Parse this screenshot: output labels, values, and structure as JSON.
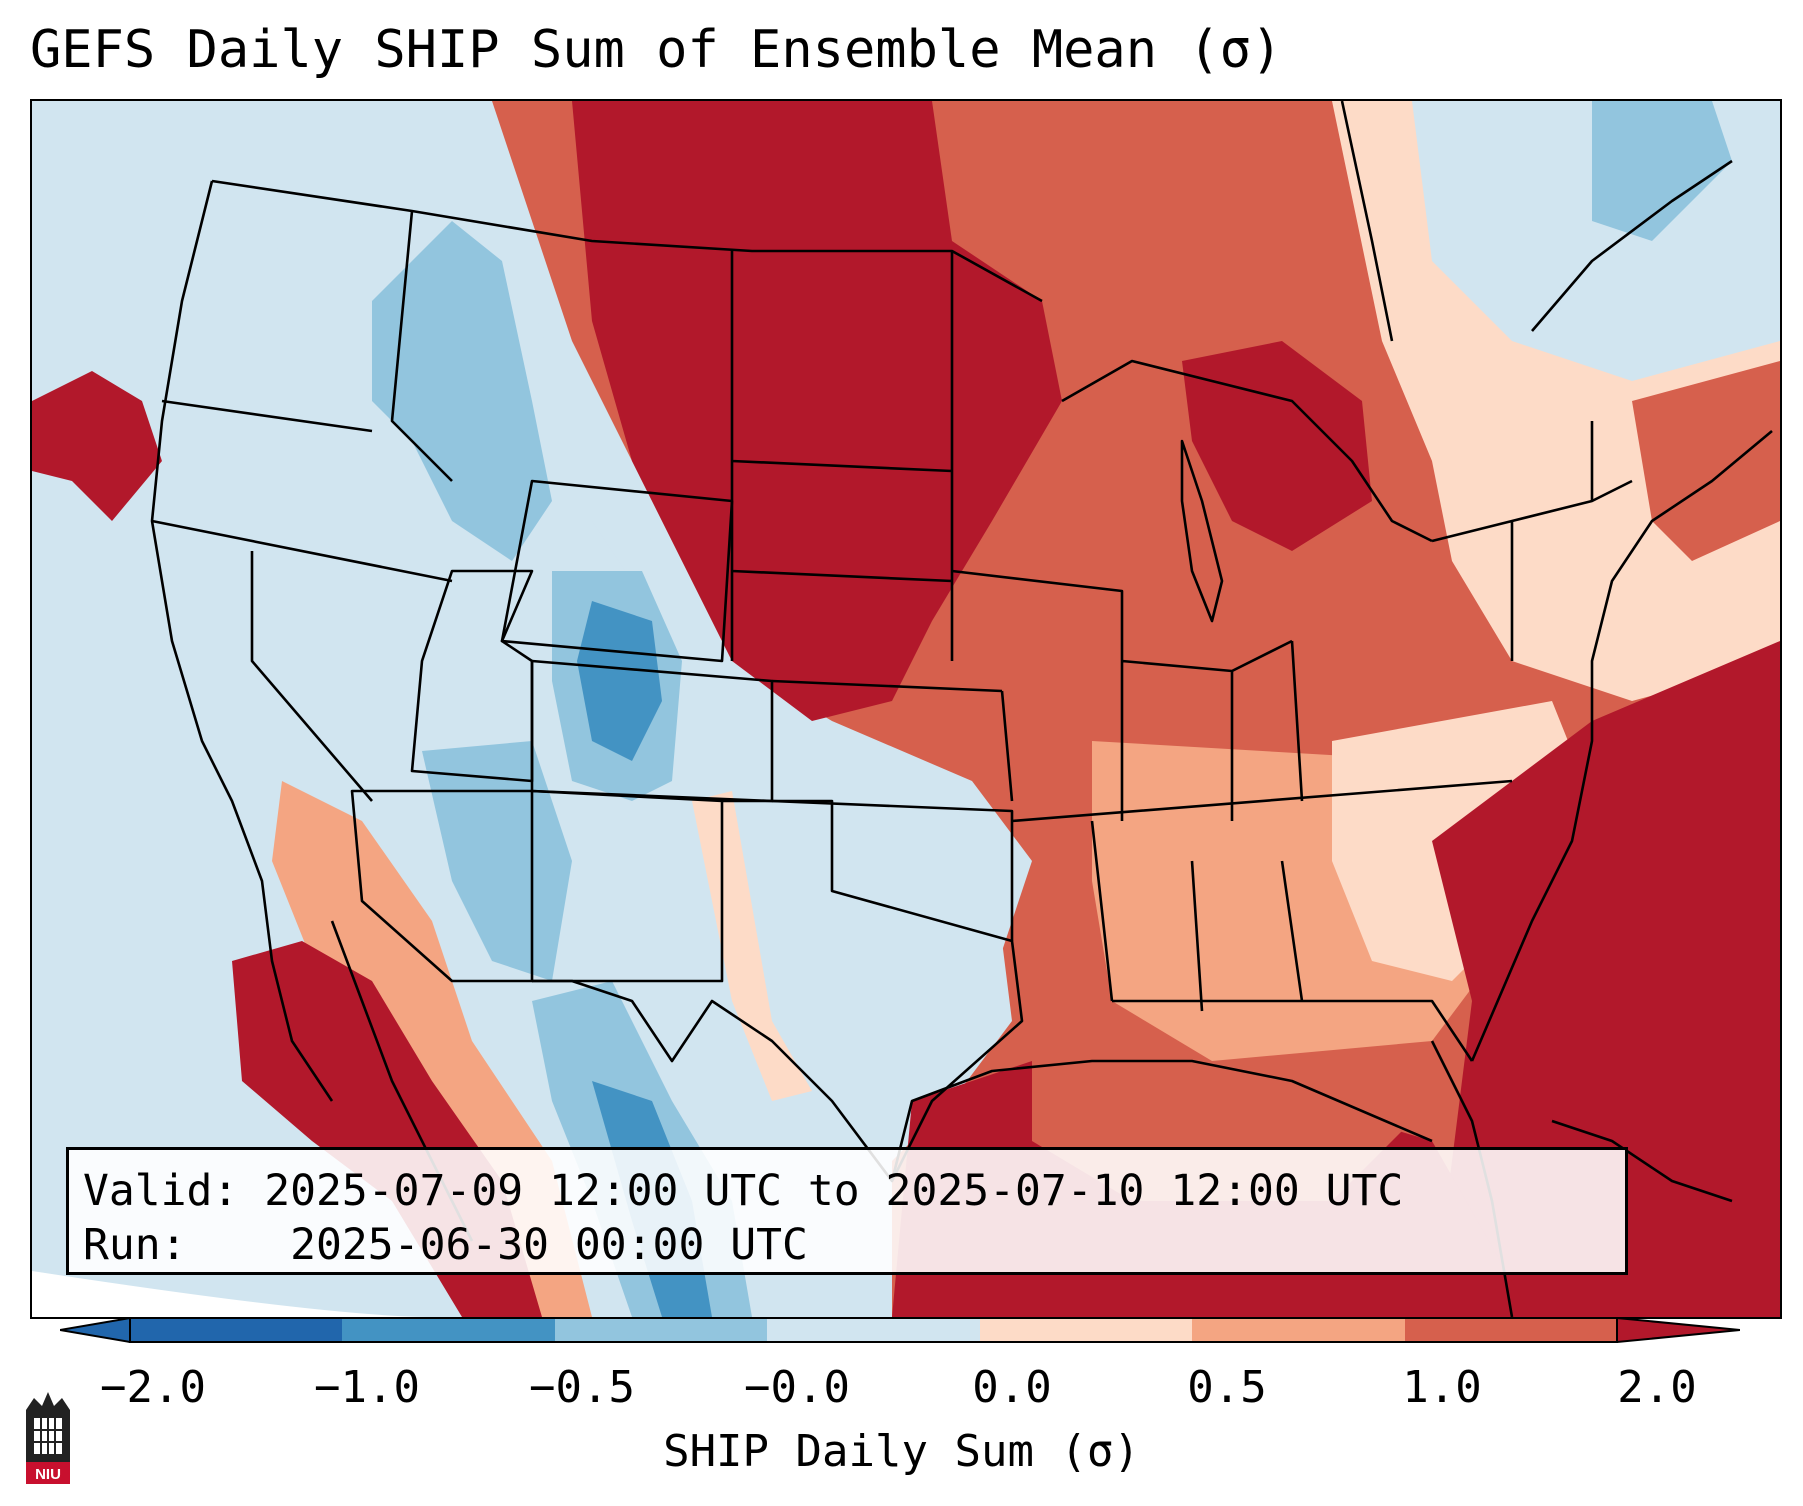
{
  "title": "GEFS Daily SHIP Sum of Ensemble Mean (σ)",
  "info": {
    "valid_label": "Valid:",
    "valid_value": "2025-07-09 12:00 UTC to 2025-07-10 12:00 UTC",
    "run_label": "Run:",
    "run_value": "2025-06-30 00:00 UTC"
  },
  "colorbar": {
    "label": "SHIP Daily Sum (σ)",
    "ticks": [
      "−2.0",
      "−1.0",
      "−0.5",
      "−0.0",
      "0.0",
      "0.5",
      "1.0",
      "2.0"
    ],
    "colors": [
      "#2166ac",
      "#4393c3",
      "#92c5de",
      "#d1e5f0",
      "#ffffff",
      "#fddbc7",
      "#f4a582",
      "#d6604d",
      "#b2182b"
    ]
  },
  "logo": {
    "text": "NIU"
  },
  "map": {
    "region": "Contiguous United States",
    "ocean_color": "#d1e5f0",
    "neutral_color": "#ffffff"
  }
}
